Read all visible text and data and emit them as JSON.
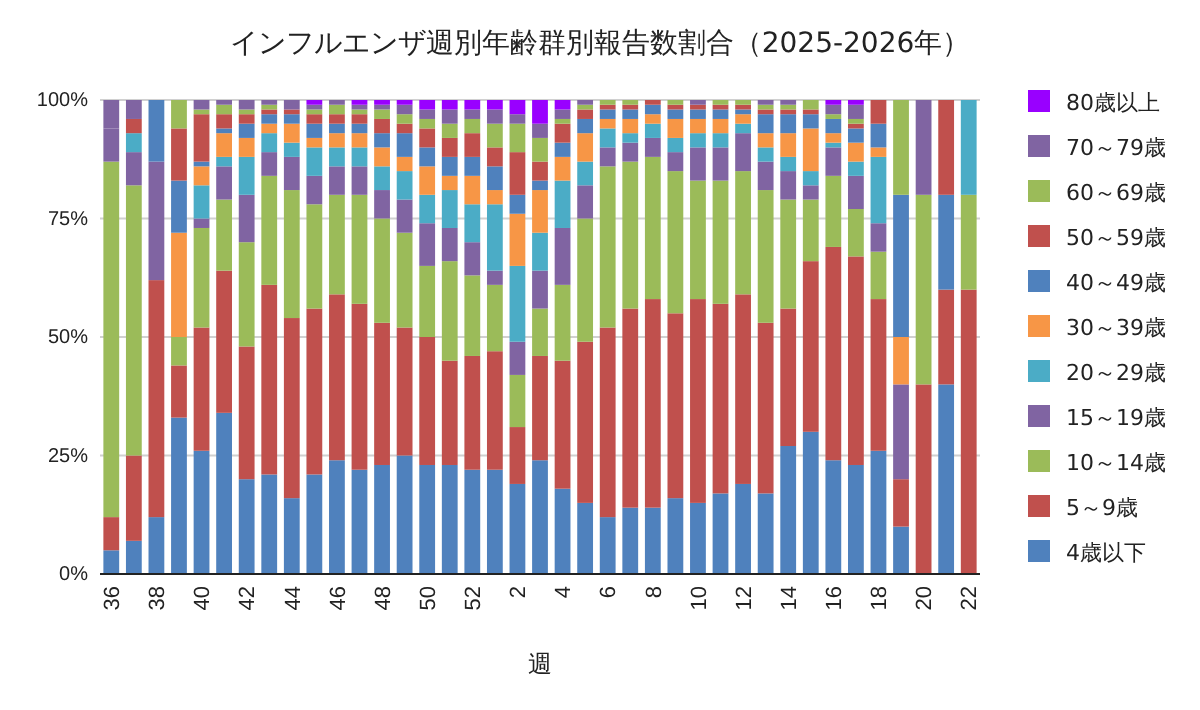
{
  "chart_data": {
    "type": "bar",
    "stacked": true,
    "title": "インフルエンザ週別年齢群別報告数割合（2025-2026年）",
    "xlabel": "週",
    "categories": [
      "36",
      null,
      "38",
      null,
      "40",
      null,
      "42",
      null,
      "44",
      null,
      "46",
      null,
      "48",
      null,
      "50",
      null,
      "52",
      null,
      "2",
      null,
      "4",
      null,
      "6",
      null,
      "8",
      null,
      "10",
      null,
      "12",
      null,
      "14",
      null,
      "16",
      null,
      "18",
      null,
      "20",
      null,
      "22"
    ],
    "ylim": [
      0,
      100
    ],
    "yticks": [
      {
        "value": 0,
        "label": "0%"
      },
      {
        "value": 25,
        "label": "25%"
      },
      {
        "value": 50,
        "label": "50%"
      },
      {
        "value": 75,
        "label": "75%"
      },
      {
        "value": 100,
        "label": "100%"
      }
    ],
    "grid": "y",
    "legend": "right",
    "series": [
      {
        "name": "4歳以下",
        "color": "#4f81bd",
        "values": [
          5,
          7,
          12,
          33,
          26,
          34,
          20,
          21,
          16,
          21,
          24,
          22,
          23,
          25,
          23,
          23,
          22,
          22,
          19,
          24,
          18,
          15,
          12,
          14,
          14,
          16,
          15,
          17,
          19,
          17,
          27,
          30,
          24,
          23,
          26,
          10,
          0,
          40,
          0
        ]
      },
      {
        "name": "5～9歳",
        "color": "#c0504d",
        "values": [
          7,
          18,
          50,
          11,
          26,
          30,
          28,
          40,
          38,
          35,
          35,
          35,
          30,
          27,
          27,
          22,
          24,
          25,
          12,
          22,
          27,
          34,
          40,
          42,
          44,
          39,
          43,
          40,
          40,
          36,
          29,
          36,
          45,
          44,
          32,
          10,
          40,
          20,
          60
        ]
      },
      {
        "name": "10～14歳",
        "color": "#9bbb59",
        "values": [
          75,
          57,
          0,
          6,
          21,
          15,
          22,
          23,
          27,
          22,
          21,
          23,
          22,
          20,
          15,
          21,
          17,
          14,
          11,
          10,
          16,
          26,
          34,
          31,
          30,
          30,
          25,
          26,
          26,
          28,
          23,
          13,
          15,
          10,
          10,
          0,
          40,
          0,
          20
        ]
      },
      {
        "name": "15～19歳",
        "color": "#8064a2",
        "values": [
          7,
          7,
          25,
          0,
          2,
          7,
          10,
          5,
          7,
          6,
          6,
          6,
          6,
          7,
          9,
          7,
          7,
          3,
          7,
          8,
          12,
          7,
          4,
          4,
          4,
          4,
          7,
          7,
          8,
          6,
          6,
          3,
          6,
          7,
          6,
          20,
          20,
          0,
          0
        ]
      },
      {
        "name": "20～29歳",
        "color": "#4bacc6",
        "values": [
          0,
          4,
          0,
          0,
          7,
          2,
          8,
          4,
          3,
          6,
          4,
          4,
          5,
          6,
          6,
          8,
          8,
          14,
          16,
          8,
          10,
          5,
          4,
          2,
          3,
          3,
          3,
          3,
          2,
          3,
          3,
          3,
          1,
          3,
          14,
          0,
          0,
          0,
          20
        ]
      },
      {
        "name": "30～39歳",
        "color": "#f79646",
        "values": [
          0,
          0,
          0,
          22,
          4,
          5,
          4,
          2,
          4,
          2,
          3,
          3,
          4,
          3,
          6,
          3,
          6,
          3,
          11,
          9,
          5,
          6,
          2,
          3,
          2,
          4,
          3,
          3,
          2,
          3,
          5,
          9,
          2,
          4,
          2,
          10,
          0,
          0,
          0
        ]
      },
      {
        "name": "40～49歳",
        "color": "#4f81bd",
        "values": [
          0,
          0,
          13,
          11,
          1,
          1,
          3,
          2,
          2,
          3,
          2,
          2,
          3,
          5,
          4,
          4,
          4,
          5,
          4,
          2,
          3,
          3,
          2,
          2,
          2,
          2,
          2,
          2,
          1,
          4,
          4,
          3,
          3,
          3,
          5,
          30,
          0,
          20,
          0
        ]
      },
      {
        "name": "50～59歳",
        "color": "#c0504d",
        "values": [
          0,
          3,
          0,
          11,
          10,
          3,
          2,
          1,
          1,
          2,
          2,
          2,
          3,
          2,
          4,
          4,
          5,
          4,
          9,
          4,
          4,
          2,
          1,
          1,
          1,
          1,
          1,
          1,
          1,
          1,
          1,
          1,
          0,
          1,
          5,
          0,
          0,
          20,
          0
        ]
      },
      {
        "name": "60～69歳",
        "color": "#9bbb59",
        "values": [
          0,
          0,
          0,
          6,
          1,
          2,
          1,
          1,
          0,
          1,
          2,
          1,
          2,
          2,
          2,
          3,
          3,
          5,
          6,
          5,
          1,
          1,
          1,
          1,
          0,
          1,
          0,
          1,
          1,
          1,
          1,
          2,
          1,
          1,
          0,
          20,
          0,
          0,
          0
        ]
      },
      {
        "name": "70～79歳",
        "color": "#8064a2",
        "values": [
          6,
          4,
          0,
          0,
          2,
          1,
          2,
          1,
          2,
          1,
          1,
          1,
          1,
          2,
          2,
          3,
          2,
          3,
          2,
          3,
          2,
          1,
          0,
          0,
          0,
          0,
          1,
          0,
          0,
          1,
          1,
          0,
          2,
          3,
          0,
          0,
          0,
          0,
          0
        ]
      },
      {
        "name": "80歳以上",
        "color": "#9900ff",
        "values": [
          0,
          0,
          0,
          0,
          0,
          0,
          0,
          0,
          0,
          1,
          0,
          1,
          1,
          1,
          2,
          2,
          2,
          2,
          3,
          5,
          2,
          0,
          0,
          0,
          0,
          0,
          0,
          0,
          0,
          0,
          0,
          0,
          1,
          1,
          0,
          0,
          0,
          0,
          0
        ]
      }
    ]
  }
}
